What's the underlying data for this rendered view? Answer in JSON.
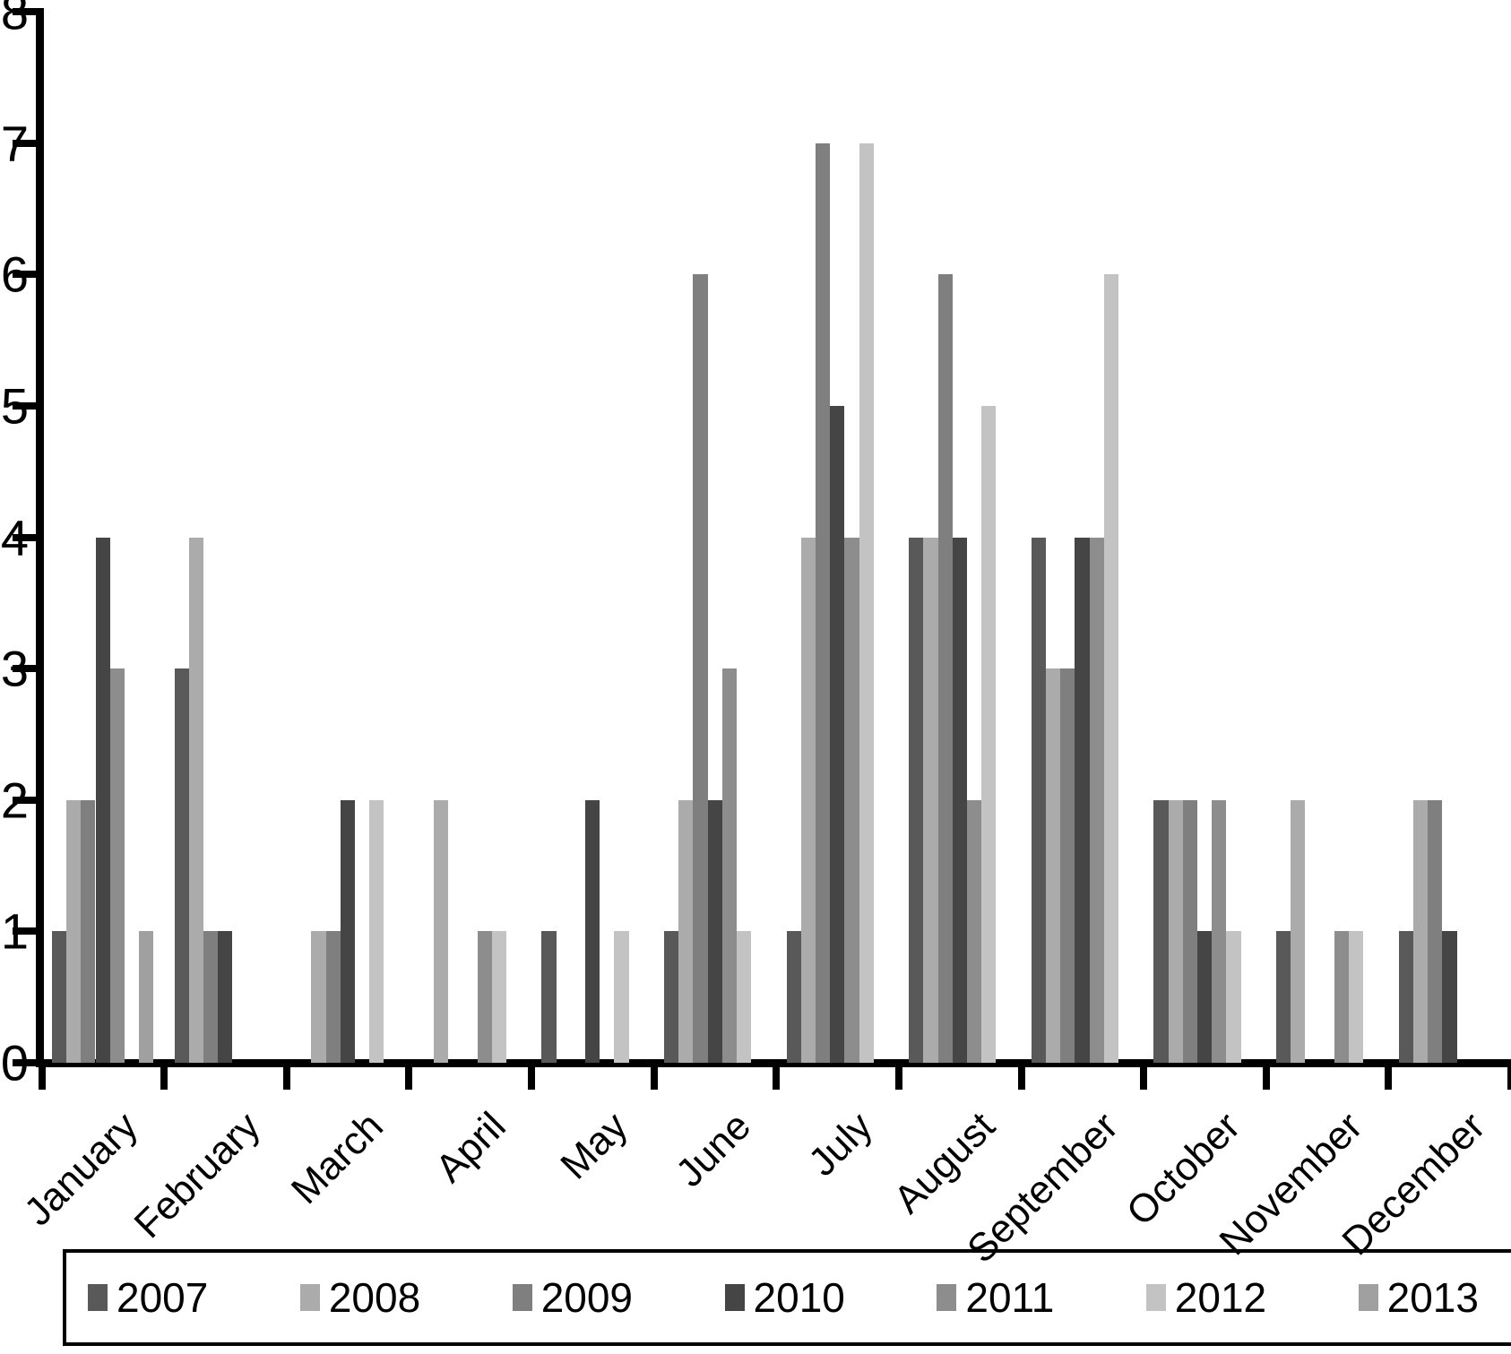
{
  "chart_data": {
    "type": "bar",
    "title": "",
    "xlabel": "",
    "ylabel": "",
    "categories": [
      "January",
      "February",
      "March",
      "April",
      "May",
      "June",
      "July",
      "August",
      "September",
      "October",
      "November",
      "December"
    ],
    "series": [
      {
        "name": "2007",
        "color": "#595959",
        "values": [
          1,
          3,
          0,
          0,
          1,
          1,
          1,
          4,
          4,
          2,
          1,
          1
        ]
      },
      {
        "name": "2008",
        "color": "#ababab",
        "values": [
          2,
          4,
          1,
          2,
          0,
          2,
          4,
          4,
          3,
          2,
          2,
          2
        ]
      },
      {
        "name": "2009",
        "color": "#7f7f7f",
        "values": [
          2,
          1,
          1,
          0,
          0,
          6,
          7,
          6,
          3,
          2,
          0,
          2
        ]
      },
      {
        "name": "2010",
        "color": "#454545",
        "values": [
          4,
          1,
          2,
          0,
          2,
          2,
          5,
          4,
          4,
          1,
          0,
          1
        ]
      },
      {
        "name": "2011",
        "color": "#8d8d8d",
        "values": [
          3,
          0,
          0,
          1,
          0,
          3,
          4,
          2,
          4,
          2,
          1,
          0
        ]
      },
      {
        "name": "2012",
        "color": "#c3c3c3",
        "values": [
          0,
          0,
          2,
          1,
          1,
          1,
          7,
          5,
          6,
          1,
          1,
          0
        ]
      },
      {
        "name": "2013",
        "color": "#a0a0a0",
        "values": [
          1,
          0,
          0,
          0,
          0,
          0,
          0,
          0,
          0,
          0,
          0,
          0
        ]
      }
    ],
    "y_axis": {
      "min": 0,
      "max": 8,
      "tick_step": 1,
      "tick_labels": [
        "0",
        "1",
        "2",
        "3",
        "4",
        "5",
        "6",
        "7",
        "8"
      ]
    },
    "grid": false,
    "legend_position": "bottom",
    "axis_color": "#000000",
    "background_color": "#ffffff"
  }
}
